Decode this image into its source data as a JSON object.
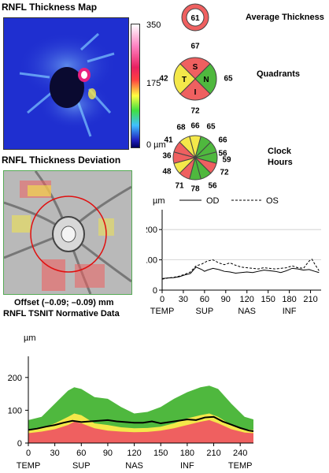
{
  "thickness_map": {
    "title": "RNFL Thickness Map",
    "scale_labels": [
      "350",
      "175",
      "0 µm"
    ]
  },
  "deviation_map": {
    "title": "RNFL Thickness Deviation",
    "offset_text": "Offset (–0.09; –0.09) mm",
    "tsnit_title": "RNFL TSNIT Normative Data"
  },
  "average_thickness": {
    "label": "Average Thickness",
    "value": "61"
  },
  "quadrants": {
    "label": "Quadrants",
    "letters": {
      "S": "S",
      "N": "N",
      "I": "I",
      "T": "T"
    },
    "values": {
      "S": "67",
      "N": "65",
      "I": "72",
      "T": "42"
    }
  },
  "clock_hours": {
    "label_line1": "Clock",
    "label_line2": "Hours",
    "values": [
      "66",
      "65",
      "66",
      "56",
      "59",
      "72",
      "56",
      "78",
      "71",
      "48",
      "36",
      "41",
      "68"
    ]
  },
  "colors": {
    "normal_green": "#4fb83e",
    "borderline_yellow": "#f4e84a",
    "abnormal_red": "#ef6060",
    "od_line": "#000000",
    "os_line": "#000000"
  },
  "chart_data": [
    {
      "type": "line",
      "unit_label": "µm",
      "legend": [
        "OD",
        "OS"
      ],
      "legend_placement": "top",
      "ylim": [
        0,
        250
      ],
      "yticks": [
        0,
        100,
        200
      ],
      "xlim": [
        0,
        225
      ],
      "xticks": [
        0,
        30,
        60,
        90,
        120,
        150,
        180,
        210
      ],
      "region_labels": [
        "TEMP",
        "SUP",
        "NAS",
        "INF"
      ],
      "region_positions": [
        0,
        60,
        120,
        180
      ],
      "series": [
        {
          "name": "OD",
          "style": "solid",
          "x": [
            0,
            8,
            16,
            24,
            32,
            40,
            48,
            56,
            60,
            64,
            72,
            80,
            88,
            96,
            104,
            112,
            120,
            128,
            136,
            144,
            152,
            160,
            168,
            176,
            184,
            192,
            200,
            208,
            216,
            222
          ],
          "y": [
            38,
            40,
            41,
            44,
            50,
            55,
            76,
            68,
            62,
            66,
            72,
            68,
            62,
            60,
            56,
            58,
            60,
            58,
            62,
            66,
            64,
            62,
            58,
            64,
            72,
            70,
            66,
            68,
            62,
            58
          ]
        },
        {
          "name": "OS",
          "style": "dashed",
          "x": [
            0,
            8,
            16,
            24,
            32,
            40,
            48,
            56,
            64,
            72,
            80,
            88,
            96,
            104,
            112,
            120,
            128,
            136,
            144,
            152,
            160,
            168,
            176,
            184,
            192,
            200,
            208,
            212,
            216,
            222
          ],
          "y": [
            36,
            40,
            42,
            46,
            52,
            60,
            80,
            86,
            96,
            100,
            90,
            84,
            90,
            82,
            76,
            74,
            72,
            70,
            74,
            72,
            70,
            72,
            74,
            80,
            74,
            72,
            96,
            102,
            86,
            64
          ]
        }
      ]
    },
    {
      "type": "area",
      "unit_label": "µm",
      "ylim": [
        0,
        250
      ],
      "yticks": [
        0,
        100,
        200
      ],
      "xlim": [
        0,
        255
      ],
      "xticks": [
        0,
        30,
        60,
        90,
        120,
        150,
        180,
        210,
        240
      ],
      "region_labels": [
        "TEMP",
        "SUP",
        "NAS",
        "INF",
        "TEMP"
      ],
      "region_positions": [
        0,
        60,
        120,
        180,
        240
      ],
      "x": [
        0,
        15,
        30,
        45,
        52,
        60,
        75,
        90,
        105,
        120,
        135,
        150,
        165,
        180,
        195,
        205,
        215,
        230,
        245,
        255
      ],
      "green_upper": [
        70,
        80,
        120,
        160,
        170,
        165,
        140,
        135,
        110,
        90,
        95,
        110,
        135,
        155,
        170,
        175,
        165,
        120,
        80,
        72
      ],
      "yellow_upper": [
        40,
        45,
        60,
        80,
        90,
        85,
        60,
        55,
        48,
        45,
        46,
        50,
        60,
        75,
        85,
        90,
        80,
        55,
        42,
        40
      ],
      "red_upper": [
        30,
        35,
        42,
        55,
        65,
        60,
        45,
        38,
        35,
        33,
        34,
        38,
        45,
        55,
        65,
        70,
        60,
        42,
        32,
        30
      ],
      "series": [
        {
          "name": "OD",
          "x": [
            0,
            10,
            20,
            30,
            40,
            50,
            60,
            70,
            80,
            90,
            100,
            110,
            120,
            130,
            140,
            150,
            160,
            170,
            180,
            190,
            200,
            210,
            220,
            230,
            240,
            250,
            255
          ],
          "y": [
            40,
            44,
            50,
            55,
            62,
            68,
            64,
            66,
            68,
            70,
            66,
            64,
            62,
            62,
            66,
            60,
            64,
            68,
            72,
            70,
            78,
            80,
            66,
            56,
            46,
            38,
            36
          ]
        }
      ]
    }
  ]
}
